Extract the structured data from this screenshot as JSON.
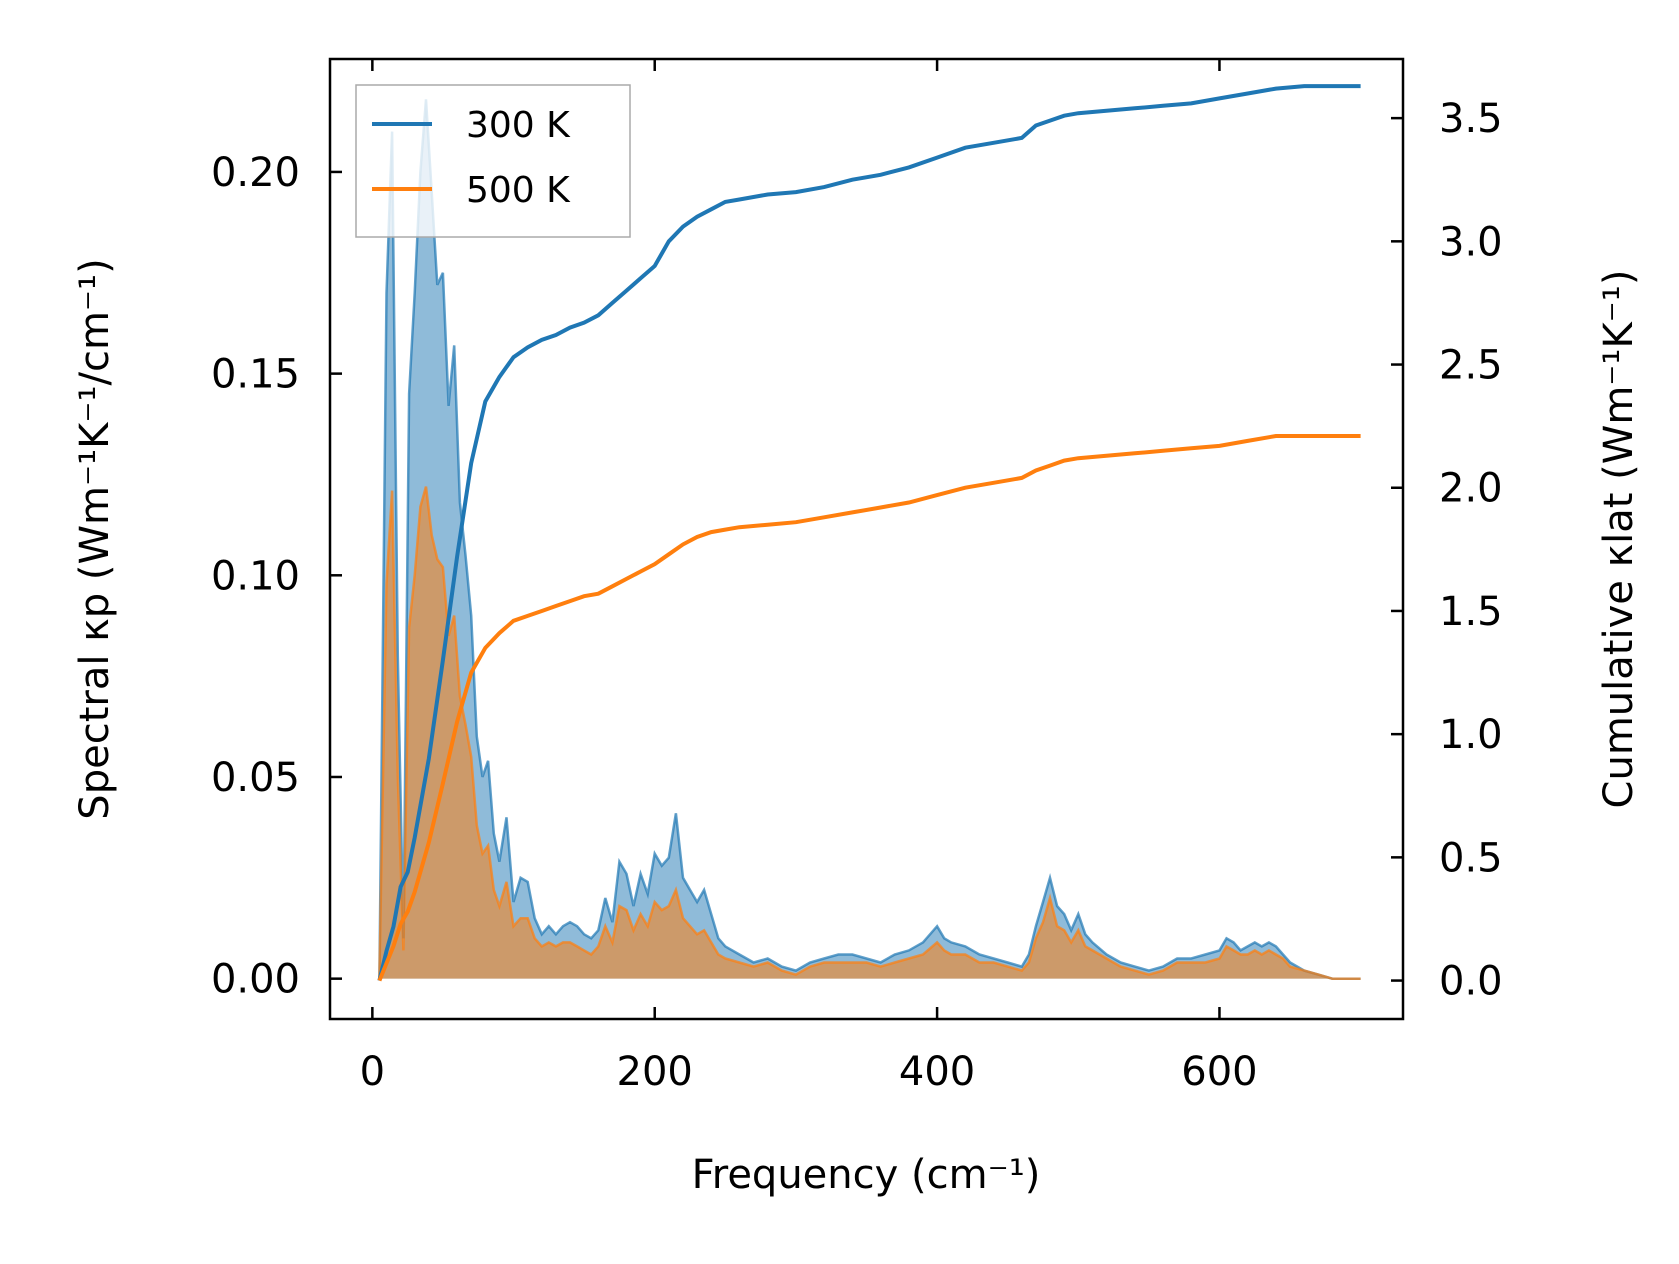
{
  "chart_data": {
    "type": "line",
    "title": "",
    "xlabel": "Frequency (cm⁻¹)",
    "ylabel_left": "Spectral κp (Wm⁻¹K⁻¹/cm⁻¹)",
    "ylabel_right": "Cumulative κlat (Wm⁻¹K⁻¹)",
    "xlim": [
      -30,
      730
    ],
    "ylim_left": [
      -0.01,
      0.228
    ],
    "ylim_right": [
      -0.156,
      3.74
    ],
    "xticks": [
      0,
      200,
      400,
      600
    ],
    "xtick_labels": [
      "0",
      "200",
      "400",
      "600"
    ],
    "yticks_left": [
      0.0,
      0.05,
      0.1,
      0.15,
      0.2
    ],
    "ytick_labels_left": [
      "0.00",
      "0.05",
      "0.10",
      "0.15",
      "0.20"
    ],
    "yticks_right": [
      0.0,
      0.5,
      1.0,
      1.5,
      2.0,
      2.5,
      3.0,
      3.5
    ],
    "ytick_labels_right": [
      "0.0",
      "0.5",
      "1.0",
      "1.5",
      "2.0",
      "2.5",
      "3.0",
      "3.5"
    ],
    "legend": {
      "position": "top-left",
      "entries": [
        "300 K",
        "500 K"
      ]
    },
    "colors": {
      "series_300": "#1f77b4",
      "series_500": "#ff7f0e"
    },
    "series": [
      {
        "name": "300 K",
        "color": "#1f77b4",
        "spectral": {
          "x": [
            5,
            10,
            14,
            18,
            22,
            26,
            30,
            34,
            38,
            42,
            46,
            50,
            54,
            58,
            62,
            66,
            70,
            74,
            78,
            82,
            86,
            90,
            95,
            100,
            105,
            110,
            115,
            120,
            125,
            130,
            135,
            140,
            145,
            150,
            155,
            160,
            165,
            170,
            175,
            180,
            185,
            190,
            195,
            200,
            205,
            210,
            215,
            220,
            225,
            230,
            235,
            240,
            245,
            250,
            260,
            270,
            280,
            290,
            300,
            310,
            320,
            330,
            340,
            350,
            360,
            370,
            380,
            390,
            400,
            405,
            410,
            420,
            430,
            440,
            450,
            460,
            465,
            470,
            475,
            480,
            485,
            490,
            495,
            500,
            505,
            510,
            520,
            530,
            540,
            550,
            560,
            570,
            580,
            590,
            600,
            605,
            610,
            615,
            620,
            625,
            630,
            635,
            640,
            645,
            650,
            660,
            670,
            680,
            690,
            700
          ],
          "y": [
            0,
            0.17,
            0.21,
            0.08,
            0.01,
            0.145,
            0.17,
            0.2,
            0.218,
            0.195,
            0.172,
            0.175,
            0.142,
            0.157,
            0.118,
            0.105,
            0.09,
            0.06,
            0.05,
            0.054,
            0.036,
            0.029,
            0.04,
            0.019,
            0.025,
            0.024,
            0.015,
            0.011,
            0.013,
            0.011,
            0.013,
            0.014,
            0.013,
            0.011,
            0.01,
            0.012,
            0.02,
            0.014,
            0.029,
            0.026,
            0.018,
            0.026,
            0.021,
            0.031,
            0.028,
            0.03,
            0.041,
            0.025,
            0.022,
            0.019,
            0.022,
            0.016,
            0.01,
            0.008,
            0.006,
            0.004,
            0.005,
            0.003,
            0.002,
            0.004,
            0.005,
            0.006,
            0.006,
            0.005,
            0.004,
            0.006,
            0.007,
            0.009,
            0.013,
            0.01,
            0.009,
            0.008,
            0.006,
            0.005,
            0.004,
            0.003,
            0.006,
            0.013,
            0.019,
            0.025,
            0.018,
            0.016,
            0.012,
            0.016,
            0.011,
            0.009,
            0.006,
            0.004,
            0.003,
            0.002,
            0.003,
            0.005,
            0.005,
            0.006,
            0.007,
            0.01,
            0.009,
            0.007,
            0.008,
            0.009,
            0.008,
            0.009,
            0.008,
            0.006,
            0.004,
            0.002,
            0.001,
            0.0,
            0.0,
            0.0
          ]
        },
        "cumulative": {
          "x": [
            5,
            10,
            15,
            20,
            25,
            30,
            40,
            50,
            60,
            70,
            80,
            90,
            100,
            110,
            120,
            130,
            140,
            150,
            160,
            170,
            180,
            190,
            200,
            210,
            220,
            230,
            240,
            250,
            260,
            280,
            300,
            320,
            340,
            360,
            380,
            400,
            420,
            440,
            460,
            470,
            480,
            490,
            500,
            520,
            540,
            560,
            580,
            600,
            620,
            640,
            660,
            680,
            700
          ],
          "y": [
            0,
            0.12,
            0.22,
            0.38,
            0.44,
            0.58,
            0.9,
            1.3,
            1.72,
            2.1,
            2.35,
            2.45,
            2.53,
            2.57,
            2.6,
            2.62,
            2.65,
            2.67,
            2.7,
            2.75,
            2.8,
            2.85,
            2.9,
            3.0,
            3.06,
            3.1,
            3.13,
            3.16,
            3.17,
            3.19,
            3.2,
            3.22,
            3.25,
            3.27,
            3.3,
            3.34,
            3.38,
            3.4,
            3.42,
            3.47,
            3.49,
            3.51,
            3.52,
            3.53,
            3.54,
            3.55,
            3.56,
            3.58,
            3.6,
            3.62,
            3.63,
            3.63,
            3.63
          ]
        }
      },
      {
        "name": "500 K",
        "color": "#ff7f0e",
        "spectral": {
          "x": [
            5,
            10,
            14,
            18,
            22,
            26,
            30,
            34,
            38,
            42,
            46,
            50,
            54,
            58,
            62,
            66,
            70,
            74,
            78,
            82,
            86,
            90,
            95,
            100,
            105,
            110,
            115,
            120,
            125,
            130,
            135,
            140,
            145,
            150,
            155,
            160,
            165,
            170,
            175,
            180,
            185,
            190,
            195,
            200,
            205,
            210,
            215,
            220,
            225,
            230,
            235,
            240,
            245,
            250,
            260,
            270,
            280,
            290,
            300,
            310,
            320,
            330,
            340,
            350,
            360,
            370,
            380,
            390,
            400,
            405,
            410,
            420,
            430,
            440,
            450,
            460,
            465,
            470,
            475,
            480,
            485,
            490,
            495,
            500,
            505,
            510,
            520,
            530,
            540,
            550,
            560,
            570,
            580,
            590,
            600,
            605,
            610,
            615,
            620,
            625,
            630,
            635,
            640,
            645,
            650,
            660,
            670,
            680,
            690,
            700
          ],
          "y": [
            0,
            0.098,
            0.121,
            0.05,
            0.007,
            0.087,
            0.1,
            0.117,
            0.122,
            0.11,
            0.104,
            0.102,
            0.085,
            0.09,
            0.07,
            0.063,
            0.055,
            0.038,
            0.031,
            0.033,
            0.022,
            0.018,
            0.024,
            0.013,
            0.015,
            0.015,
            0.01,
            0.008,
            0.009,
            0.008,
            0.009,
            0.009,
            0.008,
            0.007,
            0.006,
            0.008,
            0.013,
            0.009,
            0.018,
            0.017,
            0.012,
            0.016,
            0.013,
            0.019,
            0.017,
            0.018,
            0.022,
            0.015,
            0.013,
            0.011,
            0.012,
            0.009,
            0.006,
            0.005,
            0.004,
            0.003,
            0.004,
            0.002,
            0.001,
            0.003,
            0.004,
            0.004,
            0.004,
            0.004,
            0.003,
            0.004,
            0.005,
            0.006,
            0.009,
            0.007,
            0.006,
            0.006,
            0.004,
            0.004,
            0.003,
            0.002,
            0.004,
            0.01,
            0.014,
            0.02,
            0.013,
            0.012,
            0.009,
            0.012,
            0.008,
            0.007,
            0.005,
            0.003,
            0.002,
            0.001,
            0.002,
            0.004,
            0.004,
            0.004,
            0.005,
            0.008,
            0.007,
            0.006,
            0.006,
            0.007,
            0.006,
            0.007,
            0.006,
            0.005,
            0.003,
            0.002,
            0.001,
            0.0,
            0.0,
            0.0
          ]
        },
        "cumulative": {
          "x": [
            5,
            10,
            15,
            20,
            25,
            30,
            40,
            50,
            60,
            70,
            80,
            90,
            100,
            110,
            120,
            130,
            140,
            150,
            160,
            170,
            180,
            190,
            200,
            210,
            220,
            230,
            240,
            250,
            260,
            280,
            300,
            320,
            340,
            360,
            380,
            400,
            420,
            440,
            460,
            470,
            480,
            490,
            500,
            520,
            540,
            560,
            580,
            600,
            620,
            640,
            660,
            680,
            700
          ],
          "y": [
            0,
            0.07,
            0.14,
            0.23,
            0.28,
            0.36,
            0.56,
            0.8,
            1.05,
            1.25,
            1.35,
            1.41,
            1.46,
            1.48,
            1.5,
            1.52,
            1.54,
            1.56,
            1.57,
            1.6,
            1.63,
            1.66,
            1.69,
            1.73,
            1.77,
            1.8,
            1.82,
            1.83,
            1.84,
            1.85,
            1.86,
            1.88,
            1.9,
            1.92,
            1.94,
            1.97,
            2.0,
            2.02,
            2.04,
            2.07,
            2.09,
            2.11,
            2.12,
            2.13,
            2.14,
            2.15,
            2.16,
            2.17,
            2.19,
            2.21,
            2.21,
            2.21,
            2.21
          ]
        }
      }
    ]
  }
}
